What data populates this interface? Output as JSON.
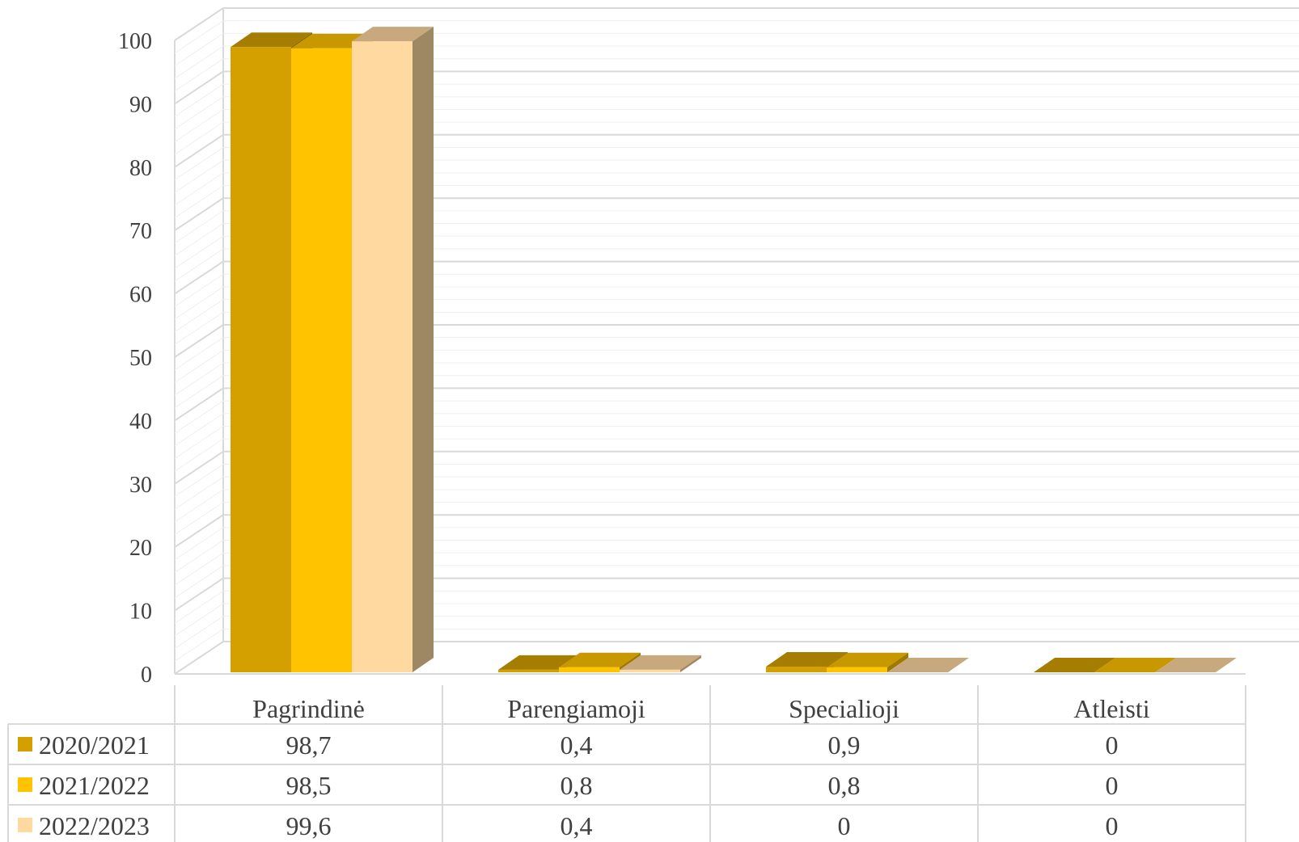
{
  "chart_data": {
    "type": "bar",
    "subtype": "3d-clustered-column-with-data-table",
    "title": "",
    "xlabel": "",
    "ylabel": "",
    "categories": [
      "Pagrindinė",
      "Parengiamoji",
      "Specialioji",
      "Atleisti"
    ],
    "series": [
      {
        "name": "2020/2021",
        "color": "#D4A000",
        "values": [
          98.7,
          0.4,
          0.9,
          0
        ]
      },
      {
        "name": "2021/2022",
        "color": "#FFC300",
        "values": [
          98.5,
          0.8,
          0.8,
          0
        ]
      },
      {
        "name": "2022/2023",
        "color": "#FFD9A0",
        "values": [
          99.6,
          0.4,
          0,
          0
        ]
      }
    ],
    "table_values": [
      [
        "98,7",
        "0,4",
        "0,9",
        "0"
      ],
      [
        "98,5",
        "0,8",
        "0,8",
        "0"
      ],
      [
        "99,6",
        "0,4",
        "0",
        "0"
      ]
    ],
    "ylim": [
      0,
      100
    ],
    "yticks": [
      0,
      10,
      20,
      30,
      40,
      50,
      60,
      70,
      80,
      90,
      100
    ],
    "grid": true,
    "legend": "data-table-left"
  }
}
